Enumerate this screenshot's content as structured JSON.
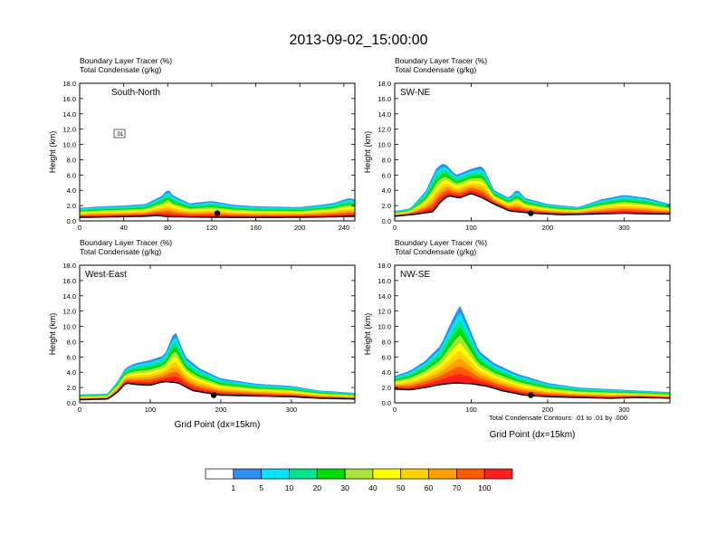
{
  "figure": {
    "title": "2013-09-02_15:00:00",
    "colorbar": {
      "labels": [
        "1",
        "5",
        "10",
        "20",
        "30",
        "40",
        "50",
        "60",
        "70",
        "100"
      ],
      "colors": [
        "#ffffff",
        "#2f8ff0",
        "#00e6ff",
        "#00e48a",
        "#00dc00",
        "#a8e43c",
        "#ffff00",
        "#ffd200",
        "#ffa000",
        "#ff5a00",
        "#ff1e1e"
      ]
    },
    "contour_note": "Total Condensate Contours: .01 to .01 by .000"
  },
  "chart_data": [
    {
      "type": "heatmap",
      "panel_label": "South-North",
      "title_line1": "Boundary Layer Tracer   (%)",
      "title_line2": "Total Condensate   (g/kg)",
      "ylabel": "Height (km)",
      "xlabel": "",
      "xlim": [
        0,
        250
      ],
      "ylim": [
        0,
        18
      ],
      "xticks": [
        0,
        40,
        80,
        120,
        160,
        200,
        240
      ],
      "yticks": [
        "0.0",
        "2.0",
        "4.0",
        "6.0",
        "8.0",
        "10.0",
        "12.0",
        "14.0",
        "16.0",
        "18.0"
      ],
      "marker_x": 125,
      "contour_label": ".01",
      "terrain_profile": [
        [
          0,
          0.45
        ],
        [
          20,
          0.5
        ],
        [
          40,
          0.55
        ],
        [
          60,
          0.6
        ],
        [
          70,
          0.7
        ],
        [
          80,
          0.55
        ],
        [
          100,
          0.5
        ],
        [
          140,
          0.45
        ],
        [
          180,
          0.45
        ],
        [
          220,
          0.5
        ],
        [
          250,
          0.6
        ]
      ],
      "tracer_top_profile": [
        [
          0,
          1.7
        ],
        [
          20,
          1.9
        ],
        [
          40,
          2.0
        ],
        [
          60,
          2.2
        ],
        [
          75,
          3.3
        ],
        [
          80,
          4.2
        ],
        [
          85,
          3.3
        ],
        [
          100,
          2.3
        ],
        [
          120,
          2.6
        ],
        [
          140,
          2.1
        ],
        [
          160,
          1.9
        ],
        [
          200,
          1.8
        ],
        [
          230,
          2.3
        ],
        [
          245,
          3.0
        ],
        [
          250,
          2.8
        ]
      ]
    },
    {
      "type": "heatmap",
      "panel_label": "SW-NE",
      "title_line1": "Boundary Layer Tracer   (%)",
      "title_line2": "Total Condensate   (g/kg)",
      "ylabel": "Height (km)",
      "xlabel": "",
      "xlim": [
        0,
        360
      ],
      "ylim": [
        0,
        18
      ],
      "xticks": [
        0,
        100,
        200,
        300
      ],
      "yticks": [
        "0.0",
        "2.0",
        "4.0",
        "6.0",
        "8.0",
        "10.0",
        "12.0",
        "14.0",
        "16.0",
        "18.0"
      ],
      "marker_x": 178,
      "terrain_profile": [
        [
          0,
          0.6
        ],
        [
          30,
          0.9
        ],
        [
          50,
          1.2
        ],
        [
          60,
          2.5
        ],
        [
          70,
          3.3
        ],
        [
          85,
          3.0
        ],
        [
          100,
          3.6
        ],
        [
          115,
          3.0
        ],
        [
          130,
          2.2
        ],
        [
          150,
          1.3
        ],
        [
          180,
          1.0
        ],
        [
          220,
          0.8
        ],
        [
          260,
          0.9
        ],
        [
          300,
          1.0
        ],
        [
          340,
          0.9
        ],
        [
          360,
          0.9
        ]
      ],
      "tracer_top_profile": [
        [
          0,
          1.3
        ],
        [
          20,
          1.6
        ],
        [
          40,
          3.8
        ],
        [
          55,
          7.0
        ],
        [
          65,
          7.6
        ],
        [
          80,
          6.0
        ],
        [
          100,
          6.8
        ],
        [
          115,
          7.2
        ],
        [
          130,
          4.0
        ],
        [
          150,
          3.0
        ],
        [
          160,
          4.2
        ],
        [
          170,
          3.0
        ],
        [
          200,
          2.2
        ],
        [
          240,
          1.8
        ],
        [
          270,
          2.8
        ],
        [
          300,
          3.4
        ],
        [
          330,
          3.0
        ],
        [
          360,
          2.2
        ]
      ]
    },
    {
      "type": "heatmap",
      "panel_label": "West-East",
      "title_line1": "Boundary Layer Tracer   (%)",
      "title_line2": "Total Condensate   (g/kg)",
      "ylabel": "Height (km)",
      "xlabel": "Grid Point (dx=15km)",
      "xlim": [
        0,
        390
      ],
      "ylim": [
        0,
        18
      ],
      "xticks": [
        0,
        100,
        200,
        300
      ],
      "yticks": [
        "0.0",
        "2.0",
        "4.0",
        "6.0",
        "8.0",
        "10.0",
        "12.0",
        "14.0",
        "16.0",
        "18.0"
      ],
      "marker_x": 190,
      "terrain_profile": [
        [
          0,
          0.4
        ],
        [
          40,
          0.5
        ],
        [
          55,
          1.5
        ],
        [
          65,
          2.6
        ],
        [
          80,
          2.4
        ],
        [
          100,
          2.3
        ],
        [
          120,
          2.8
        ],
        [
          140,
          2.6
        ],
        [
          160,
          1.6
        ],
        [
          200,
          1.0
        ],
        [
          250,
          0.9
        ],
        [
          300,
          0.8
        ],
        [
          340,
          0.6
        ],
        [
          390,
          0.5
        ]
      ],
      "tracer_top_profile": [
        [
          0,
          1.1
        ],
        [
          40,
          1.2
        ],
        [
          55,
          3.0
        ],
        [
          65,
          4.6
        ],
        [
          80,
          5.2
        ],
        [
          100,
          5.6
        ],
        [
          120,
          6.2
        ],
        [
          135,
          9.5
        ],
        [
          150,
          6.0
        ],
        [
          170,
          4.5
        ],
        [
          200,
          3.2
        ],
        [
          250,
          2.5
        ],
        [
          300,
          2.2
        ],
        [
          340,
          1.6
        ],
        [
          390,
          1.3
        ]
      ]
    },
    {
      "type": "heatmap",
      "panel_label": "NW-SE",
      "title_line1": "Boundary Layer Tracer   (%)",
      "title_line2": "Total Condensate   (g/kg)",
      "ylabel": "Height (km)",
      "xlabel": "Grid Point (dx=15km)",
      "xlim": [
        0,
        360
      ],
      "ylim": [
        0,
        18
      ],
      "xticks": [
        0,
        100,
        200,
        300
      ],
      "yticks": [
        "0.0",
        "2.0",
        "4.0",
        "6.0",
        "8.0",
        "10.0",
        "12.0",
        "14.0",
        "16.0",
        "18.0"
      ],
      "marker_x": 178,
      "terrain_profile": [
        [
          0,
          1.8
        ],
        [
          20,
          1.7
        ],
        [
          40,
          2.0
        ],
        [
          60,
          2.4
        ],
        [
          80,
          2.6
        ],
        [
          100,
          2.5
        ],
        [
          120,
          2.2
        ],
        [
          140,
          1.6
        ],
        [
          170,
          1.0
        ],
        [
          200,
          0.8
        ],
        [
          240,
          0.7
        ],
        [
          280,
          0.6
        ],
        [
          320,
          0.7
        ],
        [
          360,
          0.6
        ]
      ],
      "tracer_top_profile": [
        [
          0,
          3.5
        ],
        [
          20,
          4.2
        ],
        [
          40,
          5.5
        ],
        [
          60,
          7.5
        ],
        [
          75,
          10.8
        ],
        [
          85,
          12.8
        ],
        [
          95,
          10.5
        ],
        [
          110,
          6.8
        ],
        [
          130,
          5.2
        ],
        [
          160,
          3.8
        ],
        [
          200,
          2.6
        ],
        [
          240,
          2.0
        ],
        [
          280,
          1.8
        ],
        [
          320,
          1.6
        ],
        [
          360,
          1.4
        ]
      ]
    }
  ]
}
